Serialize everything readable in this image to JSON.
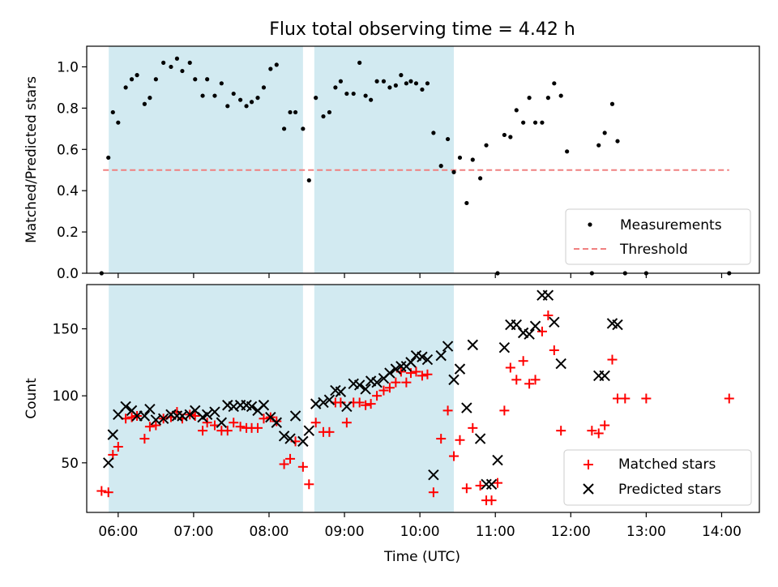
{
  "figure_title": "Flux total observing time = 4.42 h",
  "colors": {
    "shade": "#add8e6",
    "threshold": "#f08080",
    "matched": "#ff0000",
    "predicted": "#000000",
    "measure": "#000000"
  },
  "chart_data": [
    {
      "type": "scatter",
      "ylabel": "Matched/Predicted stars",
      "xlabel": "",
      "xlim": [
        5.583,
        14.5
      ],
      "ylim": [
        0,
        1.1
      ],
      "yticks": [
        {
          "v": 0.0,
          "label": "0.0"
        },
        {
          "v": 0.2,
          "label": "0.2"
        },
        {
          "v": 0.4,
          "label": "0.4"
        },
        {
          "v": 0.6,
          "label": "0.6"
        },
        {
          "v": 0.8,
          "label": "0.8"
        },
        {
          "v": 1.0,
          "label": "1.0"
        }
      ],
      "shaded_intervals": [
        [
          5.875,
          8.45
        ],
        [
          8.6,
          10.45
        ]
      ],
      "threshold": {
        "name": "Threshold",
        "value": 0.5,
        "x": [
          5.8,
          14.1
        ]
      },
      "legend": {
        "placement": "lower right",
        "entries": [
          "Measurements",
          "Threshold"
        ]
      },
      "series": [
        {
          "name": "Measurements",
          "marker": "dot",
          "points": [
            [
              5.78,
              0.0
            ],
            [
              5.87,
              0.56
            ],
            [
              5.93,
              0.78
            ],
            [
              6.0,
              0.73
            ],
            [
              6.1,
              0.9
            ],
            [
              6.18,
              0.94
            ],
            [
              6.25,
              0.96
            ],
            [
              6.35,
              0.82
            ],
            [
              6.42,
              0.85
            ],
            [
              6.5,
              0.94
            ],
            [
              6.6,
              1.02
            ],
            [
              6.7,
              1.0
            ],
            [
              6.78,
              1.04
            ],
            [
              6.85,
              0.98
            ],
            [
              6.95,
              1.02
            ],
            [
              7.02,
              0.94
            ],
            [
              7.12,
              0.86
            ],
            [
              7.18,
              0.94
            ],
            [
              7.28,
              0.86
            ],
            [
              7.37,
              0.92
            ],
            [
              7.45,
              0.81
            ],
            [
              7.53,
              0.87
            ],
            [
              7.62,
              0.84
            ],
            [
              7.7,
              0.81
            ],
            [
              7.77,
              0.83
            ],
            [
              7.85,
              0.85
            ],
            [
              7.93,
              0.9
            ],
            [
              8.02,
              0.99
            ],
            [
              8.1,
              1.01
            ],
            [
              8.2,
              0.7
            ],
            [
              8.28,
              0.78
            ],
            [
              8.35,
              0.78
            ],
            [
              8.45,
              0.7
            ],
            [
              8.53,
              0.45
            ],
            [
              8.62,
              0.85
            ],
            [
              8.72,
              0.76
            ],
            [
              8.8,
              0.78
            ],
            [
              8.88,
              0.9
            ],
            [
              8.95,
              0.93
            ],
            [
              9.03,
              0.87
            ],
            [
              9.12,
              0.87
            ],
            [
              9.2,
              1.02
            ],
            [
              9.28,
              0.86
            ],
            [
              9.35,
              0.84
            ],
            [
              9.43,
              0.93
            ],
            [
              9.52,
              0.93
            ],
            [
              9.6,
              0.9
            ],
            [
              9.68,
              0.91
            ],
            [
              9.75,
              0.96
            ],
            [
              9.82,
              0.92
            ],
            [
              9.88,
              0.93
            ],
            [
              9.95,
              0.92
            ],
            [
              10.03,
              0.89
            ],
            [
              10.1,
              0.92
            ],
            [
              10.18,
              0.68
            ],
            [
              10.28,
              0.52
            ],
            [
              10.37,
              0.65
            ],
            [
              10.45,
              0.49
            ],
            [
              10.53,
              0.56
            ],
            [
              10.62,
              0.34
            ],
            [
              10.7,
              0.55
            ],
            [
              10.8,
              0.46
            ],
            [
              10.88,
              0.62
            ],
            [
              11.03,
              0.0
            ],
            [
              11.12,
              0.67
            ],
            [
              11.2,
              0.66
            ],
            [
              11.28,
              0.79
            ],
            [
              11.37,
              0.73
            ],
            [
              11.45,
              0.85
            ],
            [
              11.53,
              0.73
            ],
            [
              11.62,
              0.73
            ],
            [
              11.7,
              0.85
            ],
            [
              11.78,
              0.92
            ],
            [
              11.87,
              0.86
            ],
            [
              11.95,
              0.59
            ],
            [
              12.28,
              0.0
            ],
            [
              12.37,
              0.62
            ],
            [
              12.45,
              0.68
            ],
            [
              12.55,
              0.82
            ],
            [
              12.62,
              0.64
            ],
            [
              12.72,
              0.0
            ],
            [
              13.0,
              0.0
            ],
            [
              14.1,
              0.0
            ]
          ]
        }
      ]
    },
    {
      "type": "scatter",
      "ylabel": "Count",
      "xlabel": "Time (UTC)",
      "xlim": [
        5.583,
        14.5
      ],
      "ylim": [
        13,
        183
      ],
      "yticks": [
        {
          "v": 50,
          "label": "50"
        },
        {
          "v": 100,
          "label": "100"
        },
        {
          "v": 150,
          "label": "150"
        }
      ],
      "xticks": [
        {
          "v": 6,
          "label": "06:00"
        },
        {
          "v": 7,
          "label": "07:00"
        },
        {
          "v": 8,
          "label": "08:00"
        },
        {
          "v": 9,
          "label": "09:00"
        },
        {
          "v": 10,
          "label": "10:00"
        },
        {
          "v": 11,
          "label": "11:00"
        },
        {
          "v": 12,
          "label": "12:00"
        },
        {
          "v": 13,
          "label": "13:00"
        },
        {
          "v": 14,
          "label": "14:00"
        }
      ],
      "shaded_intervals": [
        [
          5.875,
          8.45
        ],
        [
          8.6,
          10.45
        ]
      ],
      "legend": {
        "placement": "lower right",
        "entries": [
          "Matched stars",
          "Predicted stars"
        ]
      },
      "series": [
        {
          "name": "Matched stars",
          "marker": "plus",
          "points": [
            [
              5.78,
              29
            ],
            [
              5.87,
              28
            ],
            [
              5.93,
              56
            ],
            [
              6.0,
              62
            ],
            [
              6.1,
              83
            ],
            [
              6.18,
              84
            ],
            [
              6.25,
              85
            ],
            [
              6.35,
              68
            ],
            [
              6.42,
              77
            ],
            [
              6.5,
              78
            ],
            [
              6.6,
              83
            ],
            [
              6.7,
              84
            ],
            [
              6.78,
              88
            ],
            [
              6.85,
              83
            ],
            [
              6.95,
              86
            ],
            [
              7.02,
              85
            ],
            [
              7.12,
              74
            ],
            [
              7.18,
              80
            ],
            [
              7.28,
              78
            ],
            [
              7.37,
              74
            ],
            [
              7.45,
              74
            ],
            [
              7.53,
              80
            ],
            [
              7.62,
              77
            ],
            [
              7.7,
              76
            ],
            [
              7.77,
              76
            ],
            [
              7.85,
              76
            ],
            [
              7.93,
              83
            ],
            [
              8.02,
              84
            ],
            [
              8.1,
              81
            ],
            [
              8.2,
              49
            ],
            [
              8.28,
              53
            ],
            [
              8.35,
              66
            ],
            [
              8.45,
              47
            ],
            [
              8.53,
              34
            ],
            [
              8.62,
              80
            ],
            [
              8.72,
              73
            ],
            [
              8.8,
              73
            ],
            [
              8.88,
              95
            ],
            [
              8.95,
              95
            ],
            [
              9.03,
              80
            ],
            [
              9.12,
              95
            ],
            [
              9.2,
              95
            ],
            [
              9.28,
              93
            ],
            [
              9.35,
              94
            ],
            [
              9.43,
              100
            ],
            [
              9.52,
              104
            ],
            [
              9.6,
              106
            ],
            [
              9.68,
              110
            ],
            [
              9.75,
              118
            ],
            [
              9.82,
              110
            ],
            [
              9.88,
              117
            ],
            [
              9.95,
              118
            ],
            [
              10.03,
              115
            ],
            [
              10.1,
              116
            ],
            [
              10.18,
              28
            ],
            [
              10.28,
              68
            ],
            [
              10.37,
              89
            ],
            [
              10.45,
              55
            ],
            [
              10.53,
              67
            ],
            [
              10.62,
              31
            ],
            [
              10.7,
              76
            ],
            [
              10.8,
              33
            ],
            [
              10.88,
              22
            ],
            [
              10.95,
              22
            ],
            [
              11.03,
              35
            ],
            [
              11.12,
              89
            ],
            [
              11.2,
              121
            ],
            [
              11.28,
              112
            ],
            [
              11.37,
              126
            ],
            [
              11.45,
              109
            ],
            [
              11.53,
              112
            ],
            [
              11.62,
              148
            ],
            [
              11.7,
              160
            ],
            [
              11.78,
              134
            ],
            [
              11.87,
              74
            ],
            [
              12.28,
              74
            ],
            [
              12.37,
              72
            ],
            [
              12.45,
              78
            ],
            [
              12.55,
              127
            ],
            [
              12.62,
              98
            ],
            [
              12.72,
              98
            ],
            [
              13.0,
              98
            ],
            [
              14.1,
              98
            ]
          ]
        },
        {
          "name": "Predicted stars",
          "marker": "x",
          "points": [
            [
              5.87,
              50
            ],
            [
              5.93,
              71
            ],
            [
              6.0,
              86
            ],
            [
              6.1,
              92
            ],
            [
              6.18,
              89
            ],
            [
              6.25,
              85
            ],
            [
              6.35,
              85
            ],
            [
              6.42,
              90
            ],
            [
              6.5,
              82
            ],
            [
              6.6,
              83
            ],
            [
              6.7,
              86
            ],
            [
              6.78,
              85
            ],
            [
              6.85,
              85
            ],
            [
              6.95,
              86
            ],
            [
              7.02,
              89
            ],
            [
              7.12,
              84
            ],
            [
              7.18,
              86
            ],
            [
              7.28,
              88
            ],
            [
              7.37,
              80
            ],
            [
              7.45,
              93
            ],
            [
              7.53,
              92
            ],
            [
              7.62,
              93
            ],
            [
              7.7,
              93
            ],
            [
              7.77,
              92
            ],
            [
              7.85,
              89
            ],
            [
              7.93,
              93
            ],
            [
              8.02,
              84
            ],
            [
              8.1,
              80
            ],
            [
              8.2,
              70
            ],
            [
              8.28,
              68
            ],
            [
              8.35,
              85
            ],
            [
              8.45,
              66
            ],
            [
              8.53,
              74
            ],
            [
              8.62,
              94
            ],
            [
              8.72,
              95
            ],
            [
              8.8,
              97
            ],
            [
              8.88,
              104
            ],
            [
              8.95,
              103
            ],
            [
              9.03,
              92
            ],
            [
              9.12,
              109
            ],
            [
              9.2,
              108
            ],
            [
              9.28,
              105
            ],
            [
              9.35,
              111
            ],
            [
              9.43,
              110
            ],
            [
              9.52,
              113
            ],
            [
              9.6,
              117
            ],
            [
              9.68,
              120
            ],
            [
              9.75,
              122
            ],
            [
              9.82,
              122
            ],
            [
              9.88,
              125
            ],
            [
              9.95,
              130
            ],
            [
              10.03,
              129
            ],
            [
              10.1,
              127
            ],
            [
              10.18,
              41
            ],
            [
              10.28,
              130
            ],
            [
              10.37,
              137
            ],
            [
              10.45,
              112
            ],
            [
              10.53,
              120
            ],
            [
              10.62,
              91
            ],
            [
              10.7,
              138
            ],
            [
              10.8,
              68
            ],
            [
              10.88,
              34
            ],
            [
              10.95,
              34
            ],
            [
              11.03,
              52
            ],
            [
              11.12,
              136
            ],
            [
              11.2,
              153
            ],
            [
              11.28,
              153
            ],
            [
              11.37,
              147
            ],
            [
              11.45,
              146
            ],
            [
              11.53,
              152
            ],
            [
              11.62,
              175
            ],
            [
              11.7,
              175
            ],
            [
              11.78,
              155
            ],
            [
              11.87,
              124
            ],
            [
              12.37,
              115
            ],
            [
              12.45,
              115
            ],
            [
              12.55,
              154
            ],
            [
              12.62,
              153
            ]
          ]
        }
      ]
    }
  ]
}
